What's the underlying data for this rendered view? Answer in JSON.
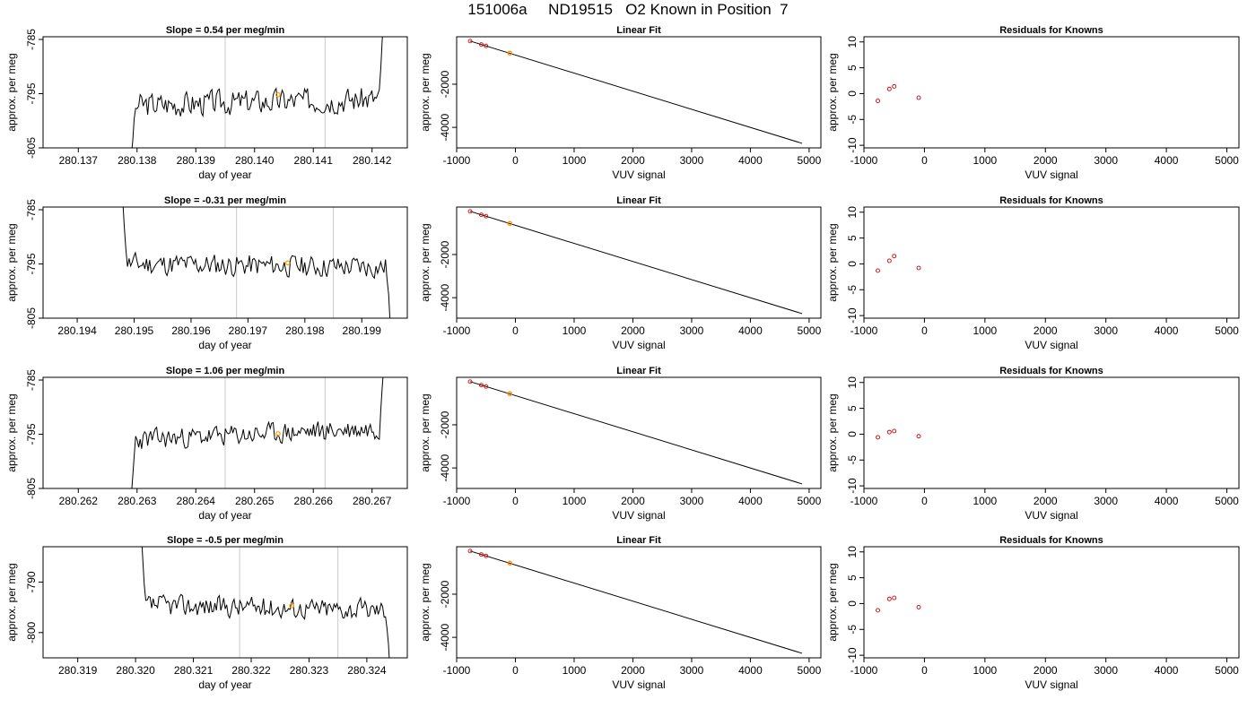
{
  "page": {
    "title": "151006a     ND19515   O2 Known in Position  7"
  },
  "chart_data": [
    {
      "type": "line",
      "title": "Slope =  0.54  per meg/min",
      "xlabel": "day of year",
      "ylabel": "approx. per meg",
      "xlim": [
        280.1364,
        280.1426
      ],
      "ylim": [
        -805,
        -784.5
      ],
      "xticks": [
        {
          "v": 280.137,
          "label": "280.137"
        },
        {
          "v": 280.138,
          "label": "280.138"
        },
        {
          "v": 280.139,
          "label": "280.139"
        },
        {
          "v": 280.14,
          "label": "280.140"
        },
        {
          "v": 280.141,
          "label": "280.141"
        },
        {
          "v": 280.142,
          "label": "280.142"
        }
      ],
      "yticks": [
        {
          "v": -785,
          "label": "-785"
        },
        {
          "v": -795,
          "label": "-795"
        },
        {
          "v": -805,
          "label": "-805"
        }
      ],
      "vlines": [
        280.1395,
        280.1412
      ],
      "series": [
        {
          "start": 280.1379,
          "end": 280.1422,
          "level": -796.5,
          "trend": 0.6,
          "noise": 1.8,
          "head": [
            -807,
            -804,
            -800
          ],
          "tail": [
            -790,
            -785,
            -782
          ],
          "seed": 3
        }
      ],
      "marker": {
        "x": 280.1404,
        "y": -795.2
      }
    },
    {
      "type": "line",
      "title": "Linear Fit",
      "xlabel": "VUV signal",
      "ylabel": "approx. per meg",
      "xlim": [
        -1000,
        5200
      ],
      "ylim": [
        -4950,
        200
      ],
      "xticks": [
        {
          "v": -1000,
          "label": "-1000"
        },
        {
          "v": 0,
          "label": "0"
        },
        {
          "v": 1000,
          "label": "1000"
        },
        {
          "v": 2000,
          "label": "2000"
        },
        {
          "v": 3000,
          "label": "3000"
        },
        {
          "v": 4000,
          "label": "4000"
        },
        {
          "v": 5000,
          "label": "5000"
        }
      ],
      "yticks": [
        {
          "v": -2000,
          "label": "-2000"
        },
        {
          "v": -4000,
          "label": "-4000"
        }
      ],
      "line": [
        [
          -770,
          0
        ],
        [
          4880,
          -4740
        ]
      ],
      "points": [
        [
          -770,
          0
        ],
        [
          -580,
          -160
        ],
        [
          -500,
          -225
        ],
        [
          -95,
          -560
        ]
      ],
      "marker": {
        "x": -95,
        "y": -560
      }
    },
    {
      "type": "scatter",
      "title": "Residuals for Knowns",
      "xlabel": "VUV signal",
      "ylabel": "approx. per meg",
      "xlim": [
        -1000,
        5200
      ],
      "ylim": [
        -10.5,
        11
      ],
      "xticks": [
        {
          "v": -1000,
          "label": "-1000"
        },
        {
          "v": 0,
          "label": "0"
        },
        {
          "v": 1000,
          "label": "1000"
        },
        {
          "v": 2000,
          "label": "2000"
        },
        {
          "v": 3000,
          "label": "3000"
        },
        {
          "v": 4000,
          "label": "4000"
        },
        {
          "v": 5000,
          "label": "5000"
        }
      ],
      "yticks": [
        {
          "v": 10,
          "label": "10"
        },
        {
          "v": 5,
          "label": "5"
        },
        {
          "v": 0,
          "label": "0"
        },
        {
          "v": -5,
          "label": "-5"
        },
        {
          "v": -10,
          "label": "-10"
        }
      ],
      "points": [
        [
          -770,
          -1.4
        ],
        [
          -580,
          0.9
        ],
        [
          -500,
          1.4
        ],
        [
          -95,
          -0.8
        ]
      ]
    },
    {
      "type": "line",
      "title": "Slope =  -0.31  per meg/min",
      "xlabel": "day of year",
      "ylabel": "approx. per meg",
      "xlim": [
        280.1934,
        280.1998
      ],
      "ylim": [
        -805,
        -784.5
      ],
      "xticks": [
        {
          "v": 280.194,
          "label": "280.194"
        },
        {
          "v": 280.195,
          "label": "280.195"
        },
        {
          "v": 280.196,
          "label": "280.196"
        },
        {
          "v": 280.197,
          "label": "280.197"
        },
        {
          "v": 280.198,
          "label": "280.198"
        },
        {
          "v": 280.199,
          "label": "280.199"
        }
      ],
      "yticks": [
        {
          "v": -785,
          "label": "-785"
        },
        {
          "v": -795,
          "label": "-795"
        },
        {
          "v": -805,
          "label": "-805"
        }
      ],
      "vlines": [
        280.1968,
        280.1985
      ],
      "series": [
        {
          "start": 280.1948,
          "end": 280.1995,
          "level": -795.3,
          "trend": -0.3,
          "noise": 1.6,
          "head": [
            -783,
            -788,
            -792
          ],
          "tail": [
            -798,
            -801,
            -806
          ],
          "seed": 11
        }
      ],
      "marker": {
        "x": 280.1977,
        "y": -794.8
      }
    },
    {
      "type": "line",
      "title": "Linear Fit",
      "xlabel": "VUV signal",
      "ylabel": "approx. per meg",
      "xlim": [
        -1000,
        5200
      ],
      "ylim": [
        -4950,
        200
      ],
      "xticks": [
        {
          "v": -1000,
          "label": "-1000"
        },
        {
          "v": 0,
          "label": "0"
        },
        {
          "v": 1000,
          "label": "1000"
        },
        {
          "v": 2000,
          "label": "2000"
        },
        {
          "v": 3000,
          "label": "3000"
        },
        {
          "v": 4000,
          "label": "4000"
        },
        {
          "v": 5000,
          "label": "5000"
        }
      ],
      "yticks": [
        {
          "v": -2000,
          "label": "-2000"
        },
        {
          "v": -4000,
          "label": "-4000"
        }
      ],
      "line": [
        [
          -770,
          0
        ],
        [
          4880,
          -4740
        ]
      ],
      "points": [
        [
          -770,
          0
        ],
        [
          -580,
          -160
        ],
        [
          -500,
          -225
        ],
        [
          -95,
          -560
        ]
      ],
      "marker": {
        "x": -95,
        "y": -560
      }
    },
    {
      "type": "scatter",
      "title": "Residuals for Knowns",
      "xlabel": "VUV signal",
      "ylabel": "approx. per meg",
      "xlim": [
        -1000,
        5200
      ],
      "ylim": [
        -10.5,
        11
      ],
      "xticks": [
        {
          "v": -1000,
          "label": "-1000"
        },
        {
          "v": 0,
          "label": "0"
        },
        {
          "v": 1000,
          "label": "1000"
        },
        {
          "v": 2000,
          "label": "2000"
        },
        {
          "v": 3000,
          "label": "3000"
        },
        {
          "v": 4000,
          "label": "4000"
        },
        {
          "v": 5000,
          "label": "5000"
        }
      ],
      "yticks": [
        {
          "v": 10,
          "label": "10"
        },
        {
          "v": 5,
          "label": "5"
        },
        {
          "v": 0,
          "label": "0"
        },
        {
          "v": -5,
          "label": "-5"
        },
        {
          "v": -10,
          "label": "-10"
        }
      ],
      "points": [
        [
          -770,
          -1.3
        ],
        [
          -580,
          0.6
        ],
        [
          -500,
          1.5
        ],
        [
          -95,
          -0.8
        ]
      ]
    },
    {
      "type": "line",
      "title": "Slope =  1.06  per meg/min",
      "xlabel": "day of year",
      "ylabel": "approx. per meg",
      "xlim": [
        280.2614,
        280.2676
      ],
      "ylim": [
        -805,
        -784.5
      ],
      "xticks": [
        {
          "v": 280.262,
          "label": "280.262"
        },
        {
          "v": 280.263,
          "label": "280.263"
        },
        {
          "v": 280.264,
          "label": "280.264"
        },
        {
          "v": 280.265,
          "label": "280.265"
        },
        {
          "v": 280.266,
          "label": "280.266"
        },
        {
          "v": 280.267,
          "label": "280.267"
        }
      ],
      "yticks": [
        {
          "v": -785,
          "label": "-785"
        },
        {
          "v": -795,
          "label": "-795"
        },
        {
          "v": -805,
          "label": "-805"
        }
      ],
      "vlines": [
        280.2645,
        280.2662
      ],
      "series": [
        {
          "start": 280.2629,
          "end": 280.2672,
          "level": -795,
          "trend": 1.1,
          "noise": 1.5,
          "head": [
            -807,
            -803,
            -799
          ],
          "tail": [
            -790,
            -786,
            -782
          ],
          "seed": 23
        }
      ],
      "marker": {
        "x": 280.2654,
        "y": -794.9
      }
    },
    {
      "type": "line",
      "title": "Linear Fit",
      "xlabel": "VUV signal",
      "ylabel": "approx. per meg",
      "xlim": [
        -1000,
        5200
      ],
      "ylim": [
        -4950,
        200
      ],
      "xticks": [
        {
          "v": -1000,
          "label": "-1000"
        },
        {
          "v": 0,
          "label": "0"
        },
        {
          "v": 1000,
          "label": "1000"
        },
        {
          "v": 2000,
          "label": "2000"
        },
        {
          "v": 3000,
          "label": "3000"
        },
        {
          "v": 4000,
          "label": "4000"
        },
        {
          "v": 5000,
          "label": "5000"
        }
      ],
      "yticks": [
        {
          "v": -2000,
          "label": "-2000"
        },
        {
          "v": -4000,
          "label": "-4000"
        }
      ],
      "line": [
        [
          -770,
          0
        ],
        [
          4880,
          -4740
        ]
      ],
      "points": [
        [
          -770,
          0
        ],
        [
          -580,
          -160
        ],
        [
          -500,
          -225
        ],
        [
          -95,
          -560
        ]
      ],
      "marker": {
        "x": -95,
        "y": -560
      }
    },
    {
      "type": "scatter",
      "title": "Residuals for Knowns",
      "xlabel": "VUV signal",
      "ylabel": "approx. per meg",
      "xlim": [
        -1000,
        5200
      ],
      "ylim": [
        -10.5,
        11
      ],
      "xticks": [
        {
          "v": -1000,
          "label": "-1000"
        },
        {
          "v": 0,
          "label": "0"
        },
        {
          "v": 1000,
          "label": "1000"
        },
        {
          "v": 2000,
          "label": "2000"
        },
        {
          "v": 3000,
          "label": "3000"
        },
        {
          "v": 4000,
          "label": "4000"
        },
        {
          "v": 5000,
          "label": "5000"
        }
      ],
      "yticks": [
        {
          "v": 10,
          "label": "10"
        },
        {
          "v": 5,
          "label": "5"
        },
        {
          "v": 0,
          "label": "0"
        },
        {
          "v": -5,
          "label": "-5"
        },
        {
          "v": -10,
          "label": "-10"
        }
      ],
      "points": [
        [
          -770,
          -0.6
        ],
        [
          -580,
          0.4
        ],
        [
          -500,
          0.6
        ],
        [
          -95,
          -0.4
        ]
      ]
    },
    {
      "type": "line",
      "title": "Slope =  -0.5  per meg/min",
      "xlabel": "day of year",
      "ylabel": "approx. per meg",
      "xlim": [
        280.3184,
        280.3247
      ],
      "ylim": [
        -805,
        -783
      ],
      "xticks": [
        {
          "v": 280.319,
          "label": "280.319"
        },
        {
          "v": 280.32,
          "label": "280.320"
        },
        {
          "v": 280.321,
          "label": "280.321"
        },
        {
          "v": 280.322,
          "label": "280.322"
        },
        {
          "v": 280.323,
          "label": "280.323"
        },
        {
          "v": 280.324,
          "label": "280.324"
        }
      ],
      "yticks": [
        {
          "v": -790,
          "label": "-790"
        },
        {
          "v": -800,
          "label": "-800"
        }
      ],
      "vlines": [
        280.3218,
        280.3235
      ],
      "series": [
        {
          "start": 280.3201,
          "end": 280.3244,
          "level": -795,
          "trend": -0.5,
          "noise": 1.6,
          "head": [
            -781,
            -786,
            -791
          ],
          "tail": [
            -799,
            -802,
            -808
          ],
          "seed": 37
        }
      ],
      "marker": {
        "x": 280.3227,
        "y": -794.7
      }
    },
    {
      "type": "line",
      "title": "Linear Fit",
      "xlabel": "VUV signal",
      "ylabel": "approx. per meg",
      "xlim": [
        -1000,
        5200
      ],
      "ylim": [
        -4950,
        200
      ],
      "xticks": [
        {
          "v": -1000,
          "label": "-1000"
        },
        {
          "v": 0,
          "label": "0"
        },
        {
          "v": 1000,
          "label": "1000"
        },
        {
          "v": 2000,
          "label": "2000"
        },
        {
          "v": 3000,
          "label": "3000"
        },
        {
          "v": 4000,
          "label": "4000"
        },
        {
          "v": 5000,
          "label": "5000"
        }
      ],
      "yticks": [
        {
          "v": -2000,
          "label": "-2000"
        },
        {
          "v": -4000,
          "label": "-4000"
        }
      ],
      "line": [
        [
          -770,
          0
        ],
        [
          4880,
          -4740
        ]
      ],
      "points": [
        [
          -770,
          0
        ],
        [
          -580,
          -160
        ],
        [
          -500,
          -225
        ],
        [
          -95,
          -560
        ]
      ],
      "marker": {
        "x": -95,
        "y": -560
      }
    },
    {
      "type": "scatter",
      "title": "Residuals for Knowns",
      "xlabel": "VUV signal",
      "ylabel": "approx. per meg",
      "xlim": [
        -1000,
        5200
      ],
      "ylim": [
        -10.5,
        11
      ],
      "xticks": [
        {
          "v": -1000,
          "label": "-1000"
        },
        {
          "v": 0,
          "label": "0"
        },
        {
          "v": 1000,
          "label": "1000"
        },
        {
          "v": 2000,
          "label": "2000"
        },
        {
          "v": 3000,
          "label": "3000"
        },
        {
          "v": 4000,
          "label": "4000"
        },
        {
          "v": 5000,
          "label": "5000"
        }
      ],
      "yticks": [
        {
          "v": 10,
          "label": "10"
        },
        {
          "v": 5,
          "label": "5"
        },
        {
          "v": 0,
          "label": "0"
        },
        {
          "v": -5,
          "label": "-5"
        },
        {
          "v": -10,
          "label": "-10"
        }
      ],
      "points": [
        [
          -770,
          -1.3
        ],
        [
          -580,
          0.9
        ],
        [
          -500,
          1.1
        ],
        [
          -95,
          -0.7
        ]
      ]
    }
  ],
  "colors": {
    "line": "#000000",
    "vline": "#c8c8c8",
    "points": "#cc0000",
    "marker": "#ff9900",
    "frame": "#000000"
  }
}
